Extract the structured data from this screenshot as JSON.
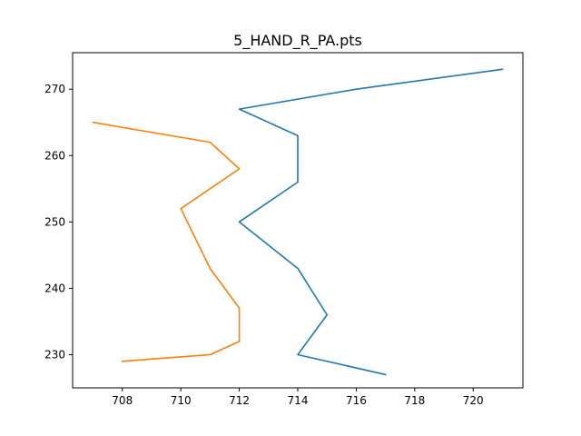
{
  "chart_data": {
    "type": "line",
    "title": "5_HAND_R_PA.pts",
    "xlabel": "",
    "ylabel": "",
    "xlim": [
      706.3,
      721.7
    ],
    "ylim": [
      225.0,
      275.5
    ],
    "xticks": [
      708,
      710,
      712,
      714,
      716,
      718,
      720
    ],
    "yticks": [
      230,
      240,
      250,
      260,
      270
    ],
    "grid": false,
    "series": [
      {
        "color": "#1f77b4",
        "x": [
          721,
          716,
          712,
          714,
          714,
          712,
          714,
          715,
          714,
          717
        ],
        "y": [
          273,
          270,
          267,
          263,
          256,
          250,
          243,
          236,
          230,
          227
        ]
      },
      {
        "color": "#ff7f0e",
        "x": [
          707,
          711,
          712,
          710,
          711,
          712,
          712,
          711,
          708
        ],
        "y": [
          265,
          262,
          258,
          252,
          243,
          237,
          232,
          230,
          229
        ]
      }
    ]
  }
}
